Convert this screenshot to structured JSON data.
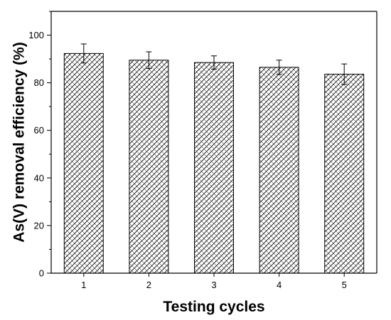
{
  "chart_data": {
    "type": "bar",
    "title": "",
    "xlabel": "Testing cycles",
    "ylabel": "As(V) removal efficiency (%)",
    "categories": [
      "1",
      "2",
      "3",
      "4",
      "5"
    ],
    "values": [
      92.3,
      89.5,
      88.5,
      86.5,
      83.6
    ],
    "errors": [
      4.0,
      3.5,
      2.8,
      3.0,
      4.3
    ],
    "ylim": [
      0,
      110
    ],
    "yticks": [
      0,
      20,
      40,
      60,
      80,
      100
    ],
    "grid": false,
    "legend": "none",
    "bar_fill": "crosshatch",
    "colors": {
      "bar_stroke": "#000000",
      "hatch": "#000000",
      "background": "#ffffff"
    }
  }
}
